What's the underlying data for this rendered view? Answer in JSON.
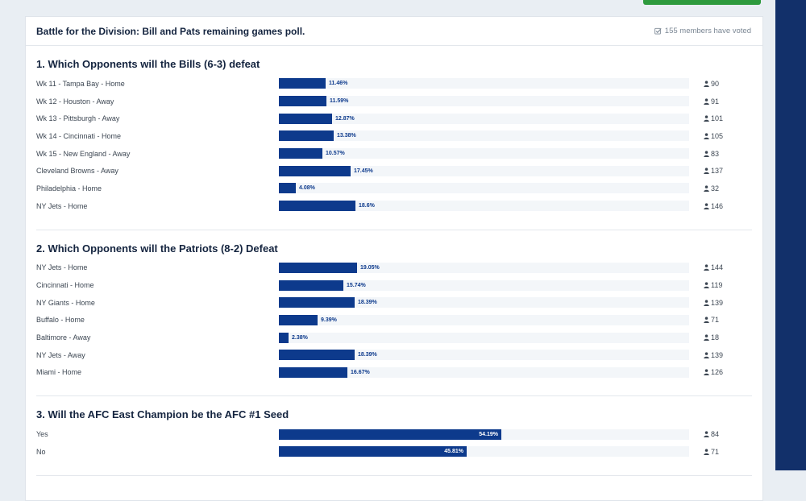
{
  "poll": {
    "title": "Battle for the Division: Bill and Pats remaining games poll.",
    "voted_text": "155 members have voted"
  },
  "questions": [
    {
      "title": "1. Which Opponents will the Bills (6-3) defeat",
      "options": [
        {
          "label": "Wk 11 - Tampa Bay - Home",
          "pct": 11.46,
          "pct_text": "11.46%",
          "count": "90"
        },
        {
          "label": "Wk 12 - Houston - Away",
          "pct": 11.59,
          "pct_text": "11.59%",
          "count": "91"
        },
        {
          "label": "Wk 13 - Pittsburgh - Away",
          "pct": 12.87,
          "pct_text": "12.87%",
          "count": "101"
        },
        {
          "label": "Wk 14 - Cincinnati - Home",
          "pct": 13.38,
          "pct_text": "13.38%",
          "count": "105"
        },
        {
          "label": "Wk 15 - New England - Away",
          "pct": 10.57,
          "pct_text": "10.57%",
          "count": "83"
        },
        {
          "label": "Cleveland Browns - Away",
          "pct": 17.45,
          "pct_text": "17.45%",
          "count": "137"
        },
        {
          "label": "Philadelphia - Home",
          "pct": 4.08,
          "pct_text": "4.08%",
          "count": "32"
        },
        {
          "label": "NY Jets - Home",
          "pct": 18.6,
          "pct_text": "18.6%",
          "count": "146"
        }
      ]
    },
    {
      "title": "2. Which Opponents will the Patriots (8-2) Defeat",
      "options": [
        {
          "label": "NY Jets - Home",
          "pct": 19.05,
          "pct_text": "19.05%",
          "count": "144"
        },
        {
          "label": "Cincinnati - Home",
          "pct": 15.74,
          "pct_text": "15.74%",
          "count": "119"
        },
        {
          "label": "NY Giants - Home",
          "pct": 18.39,
          "pct_text": "18.39%",
          "count": "139"
        },
        {
          "label": "Buffalo - Home",
          "pct": 9.39,
          "pct_text": "9.39%",
          "count": "71"
        },
        {
          "label": "Baltimore - Away",
          "pct": 2.38,
          "pct_text": "2.38%",
          "count": "18"
        },
        {
          "label": "NY Jets - Away",
          "pct": 18.39,
          "pct_text": "18.39%",
          "count": "139"
        },
        {
          "label": "Miami - Home",
          "pct": 16.67,
          "pct_text": "16.67%",
          "count": "126"
        }
      ]
    },
    {
      "title": "3. Will the AFC East Champion be the AFC #1 Seed",
      "options": [
        {
          "label": "Yes",
          "pct": 54.19,
          "pct_text": "54.19%",
          "count": "84"
        },
        {
          "label": "No",
          "pct": 45.81,
          "pct_text": "45.81%",
          "count": "71"
        }
      ]
    }
  ],
  "colors": {
    "bar": "#0d3a8c",
    "track": "#f3f6f9",
    "accent_right": "#12306a",
    "button_green": "#2e9a3d"
  },
  "icons": {
    "voted": "checkbox-icon",
    "voter_count": "user-icon"
  }
}
